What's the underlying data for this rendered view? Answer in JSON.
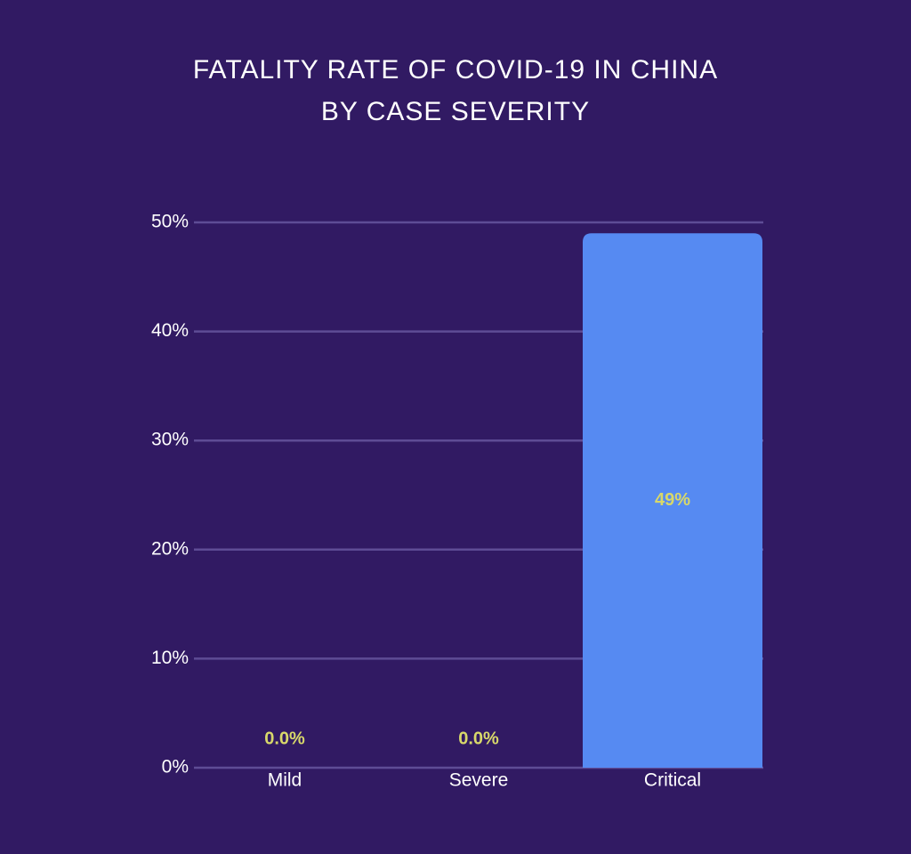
{
  "chart_data": {
    "type": "bar",
    "title": [
      "FATALITY RATE OF COVID-19 IN CHINA",
      "BY CASE SEVERITY"
    ],
    "categories": [
      "Mild",
      "Severe",
      "Critical"
    ],
    "values": [
      0,
      0,
      49
    ],
    "value_labels": [
      "0.0%",
      "0.0%",
      "49%"
    ],
    "color": "#568af2",
    "ylim": [
      0,
      50
    ],
    "yticks": [
      {
        "value": 0,
        "label": "0%"
      },
      {
        "value": 10,
        "label": "10%"
      },
      {
        "value": 20,
        "label": "20%"
      },
      {
        "value": 30,
        "label": "30%"
      },
      {
        "value": 40,
        "label": "40%"
      },
      {
        "value": 50,
        "label": "50%"
      }
    ],
    "grid": true
  }
}
